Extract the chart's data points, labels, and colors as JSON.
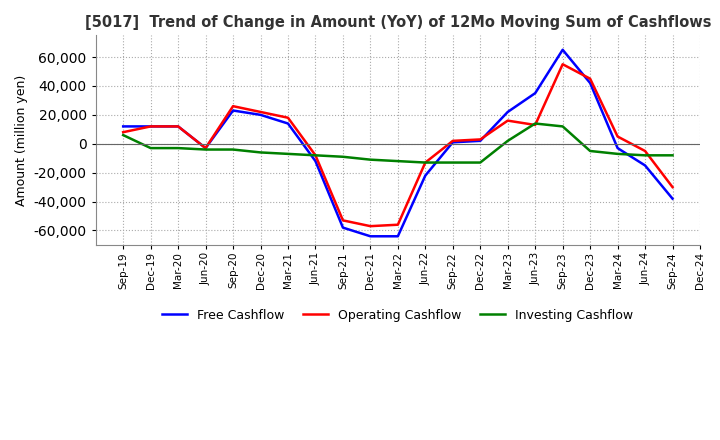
{
  "title": "[5017]  Trend of Change in Amount (YoY) of 12Mo Moving Sum of Cashflows",
  "ylabel": "Amount (million yen)",
  "ylim": [
    -70000,
    75000
  ],
  "yticks": [
    -60000,
    -40000,
    -20000,
    0,
    20000,
    40000,
    60000
  ],
  "x_labels": [
    "Sep-19",
    "Dec-19",
    "Mar-20",
    "Jun-20",
    "Sep-20",
    "Dec-20",
    "Mar-21",
    "Jun-21",
    "Sep-21",
    "Dec-21",
    "Mar-22",
    "Jun-22",
    "Sep-22",
    "Dec-22",
    "Mar-23",
    "Jun-23",
    "Sep-23",
    "Dec-23",
    "Mar-24",
    "Jun-24",
    "Sep-24",
    "Dec-24"
  ],
  "operating": [
    8000,
    12000,
    12000,
    -3000,
    26000,
    22000,
    18000,
    -8000,
    -53000,
    -57000,
    -56000,
    -13000,
    2000,
    3000,
    16000,
    13000,
    55000,
    45000,
    5000,
    -5000,
    -30000,
    null
  ],
  "investing": [
    6000,
    -3000,
    -3000,
    -4000,
    -4000,
    -6000,
    -7000,
    -8000,
    -9000,
    -11000,
    -12000,
    -13000,
    -13000,
    -13000,
    2000,
    14000,
    12000,
    -5000,
    -7000,
    -8000,
    -8000,
    null
  ],
  "free": [
    12000,
    12000,
    12000,
    -3000,
    23000,
    20000,
    14000,
    -12000,
    -58000,
    -64000,
    -64000,
    -22000,
    1000,
    2000,
    22000,
    35000,
    65000,
    42000,
    -3000,
    -15000,
    -38000,
    null
  ],
  "operating_color": "#ff0000",
  "investing_color": "#008000",
  "free_color": "#0000ff",
  "bg_color": "#ffffff",
  "grid_color": "#aaaaaa"
}
